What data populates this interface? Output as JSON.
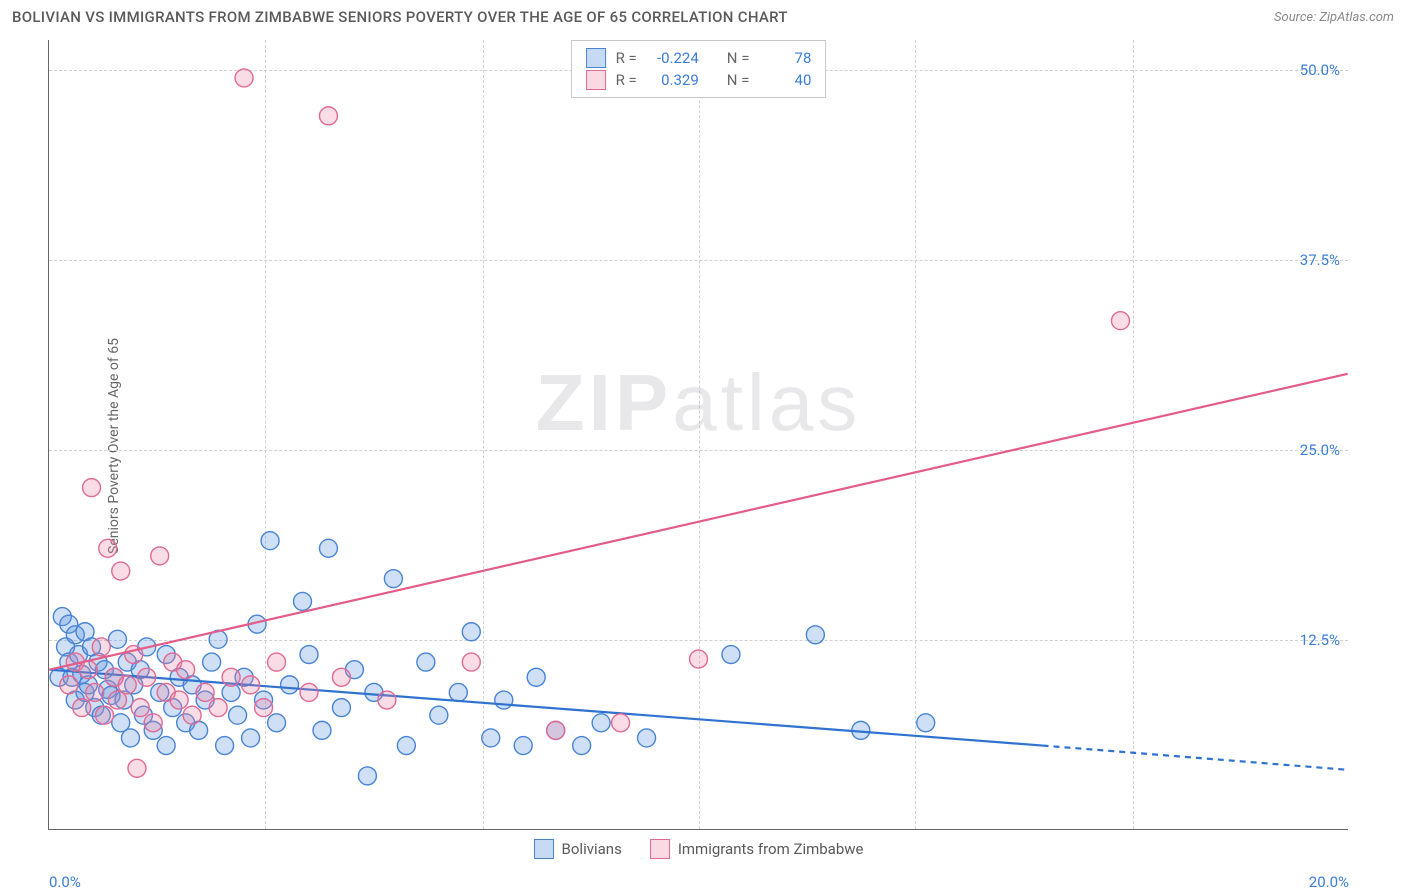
{
  "title": "BOLIVIAN VS IMMIGRANTS FROM ZIMBABWE SENIORS POVERTY OVER THE AGE OF 65 CORRELATION CHART",
  "source": "Source: ZipAtlas.com",
  "y_axis_label": "Seniors Poverty Over the Age of 65",
  "watermark_a": "ZIP",
  "watermark_b": "atlas",
  "chart": {
    "type": "scatter",
    "background": "#ffffff",
    "grid_color": "#d0d0d0",
    "axis_color": "#666666",
    "text_color": "#666666",
    "tick_color": "#3b7dd8",
    "xlim": [
      0,
      20
    ],
    "ylim": [
      0,
      52
    ],
    "y_ticks": [
      12.5,
      25.0,
      37.5,
      50.0
    ],
    "y_tick_labels": [
      "12.5%",
      "25.0%",
      "37.5%",
      "50.0%"
    ],
    "x_ticks": [
      0,
      20
    ],
    "x_tick_labels": [
      "0.0%",
      "20.0%"
    ],
    "x_grid": [
      3.33,
      6.67,
      10.0,
      13.33,
      16.67
    ],
    "marker_radius": 9,
    "marker_stroke_width": 1.4,
    "series": [
      {
        "name": "Bolivians",
        "fill": "rgba(94,150,225,0.30)",
        "stroke": "#4984d4",
        "r_value": "-0.224",
        "n_value": "78",
        "trend": {
          "x1": 0,
          "y1": 10.5,
          "x2": 15.3,
          "y2": 5.5,
          "color": "#2f72d0",
          "width": 2.2,
          "dash_x2": 20,
          "dash_y2": 3.9
        },
        "points": [
          [
            0.15,
            10
          ],
          [
            0.2,
            14
          ],
          [
            0.25,
            12
          ],
          [
            0.3,
            13.5
          ],
          [
            0.3,
            11
          ],
          [
            0.35,
            10
          ],
          [
            0.4,
            12.8
          ],
          [
            0.4,
            8.5
          ],
          [
            0.45,
            11.5
          ],
          [
            0.5,
            10.2
          ],
          [
            0.55,
            9
          ],
          [
            0.55,
            13
          ],
          [
            0.6,
            9.5
          ],
          [
            0.65,
            12
          ],
          [
            0.7,
            8
          ],
          [
            0.75,
            11
          ],
          [
            0.8,
            7.5
          ],
          [
            0.85,
            10.5
          ],
          [
            0.9,
            9.2
          ],
          [
            0.95,
            8.8
          ],
          [
            1.0,
            10
          ],
          [
            1.05,
            12.5
          ],
          [
            1.1,
            7
          ],
          [
            1.15,
            8.5
          ],
          [
            1.2,
            11
          ],
          [
            1.25,
            6
          ],
          [
            1.3,
            9.5
          ],
          [
            1.4,
            10.5
          ],
          [
            1.45,
            7.5
          ],
          [
            1.5,
            12
          ],
          [
            1.6,
            6.5
          ],
          [
            1.7,
            9
          ],
          [
            1.8,
            11.5
          ],
          [
            1.8,
            5.5
          ],
          [
            1.9,
            8
          ],
          [
            2.0,
            10
          ],
          [
            2.1,
            7
          ],
          [
            2.2,
            9.5
          ],
          [
            2.3,
            6.5
          ],
          [
            2.4,
            8.5
          ],
          [
            2.5,
            11
          ],
          [
            2.6,
            12.5
          ],
          [
            2.7,
            5.5
          ],
          [
            2.8,
            9
          ],
          [
            2.9,
            7.5
          ],
          [
            3.0,
            10
          ],
          [
            3.1,
            6
          ],
          [
            3.2,
            13.5
          ],
          [
            3.3,
            8.5
          ],
          [
            3.4,
            19
          ],
          [
            3.5,
            7
          ],
          [
            3.7,
            9.5
          ],
          [
            3.9,
            15
          ],
          [
            4.0,
            11.5
          ],
          [
            4.2,
            6.5
          ],
          [
            4.3,
            18.5
          ],
          [
            4.5,
            8
          ],
          [
            4.7,
            10.5
          ],
          [
            4.9,
            3.5
          ],
          [
            5.0,
            9
          ],
          [
            5.3,
            16.5
          ],
          [
            5.5,
            5.5
          ],
          [
            5.8,
            11
          ],
          [
            6.0,
            7.5
          ],
          [
            6.3,
            9
          ],
          [
            6.5,
            13
          ],
          [
            6.8,
            6
          ],
          [
            7.0,
            8.5
          ],
          [
            7.3,
            5.5
          ],
          [
            7.5,
            10
          ],
          [
            7.8,
            6.5
          ],
          [
            8.2,
            5.5
          ],
          [
            8.5,
            7
          ],
          [
            9.2,
            6
          ],
          [
            10.5,
            11.5
          ],
          [
            11.8,
            12.8
          ],
          [
            12.5,
            6.5
          ],
          [
            13.5,
            7
          ]
        ]
      },
      {
        "name": "Immigrants from Zimbabwe",
        "fill": "rgba(235,130,160,0.28)",
        "stroke": "#e06a94",
        "r_value": "0.329",
        "n_value": "40",
        "trend": {
          "x1": 0,
          "y1": 10.5,
          "x2": 20,
          "y2": 30.0,
          "color": "#e45c88",
          "width": 2.2
        },
        "points": [
          [
            0.3,
            9.5
          ],
          [
            0.4,
            11
          ],
          [
            0.5,
            8
          ],
          [
            0.6,
            10.5
          ],
          [
            0.65,
            22.5
          ],
          [
            0.7,
            9
          ],
          [
            0.8,
            12
          ],
          [
            0.85,
            7.5
          ],
          [
            0.9,
            18.5
          ],
          [
            1.0,
            10
          ],
          [
            1.05,
            8.5
          ],
          [
            1.1,
            17
          ],
          [
            1.2,
            9.5
          ],
          [
            1.3,
            11.5
          ],
          [
            1.35,
            4
          ],
          [
            1.4,
            8
          ],
          [
            1.5,
            10
          ],
          [
            1.6,
            7
          ],
          [
            1.7,
            18
          ],
          [
            1.8,
            9
          ],
          [
            1.9,
            11
          ],
          [
            2.0,
            8.5
          ],
          [
            2.1,
            10.5
          ],
          [
            2.2,
            7.5
          ],
          [
            2.4,
            9
          ],
          [
            2.6,
            8
          ],
          [
            2.8,
            10
          ],
          [
            3.0,
            49.5
          ],
          [
            3.1,
            9.5
          ],
          [
            3.3,
            8
          ],
          [
            3.5,
            11
          ],
          [
            4.0,
            9
          ],
          [
            4.3,
            47
          ],
          [
            4.5,
            10
          ],
          [
            5.2,
            8.5
          ],
          [
            6.5,
            11
          ],
          [
            7.8,
            6.5
          ],
          [
            8.8,
            7
          ],
          [
            10.0,
            11.2
          ],
          [
            16.5,
            33.5
          ]
        ]
      }
    ]
  },
  "legend_stats": {
    "r_label": "R =",
    "n_label": "N ="
  }
}
